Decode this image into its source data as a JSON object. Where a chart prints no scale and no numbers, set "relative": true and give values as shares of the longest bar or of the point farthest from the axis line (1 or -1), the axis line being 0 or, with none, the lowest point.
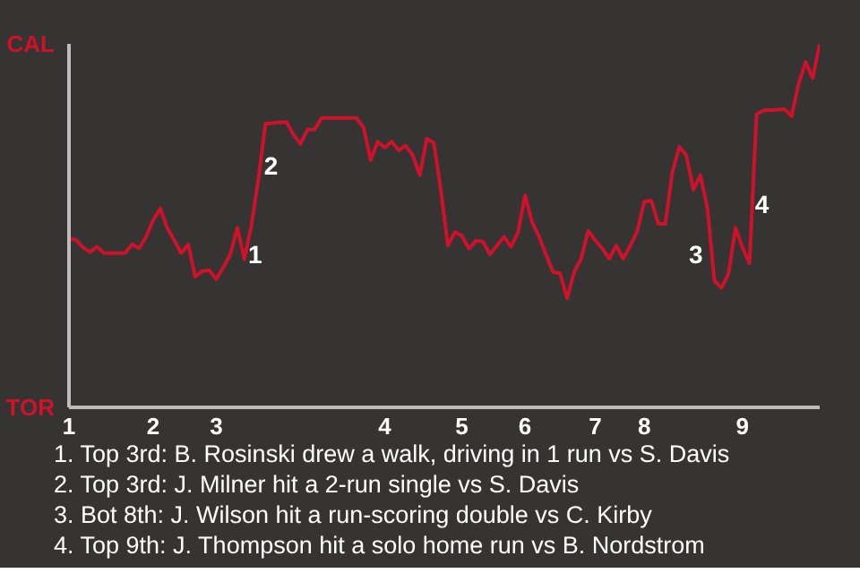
{
  "chart_data": {
    "type": "line",
    "color": "#d0112b",
    "relative": true,
    "categories": [
      "1",
      null,
      null,
      null,
      null,
      null,
      null,
      null,
      null,
      null,
      null,
      null,
      "2",
      null,
      null,
      null,
      null,
      null,
      null,
      null,
      null,
      "3",
      null,
      null,
      null,
      null,
      null,
      null,
      null,
      null,
      null,
      null,
      null,
      null,
      null,
      null,
      null,
      null,
      null,
      null,
      null,
      null,
      null,
      null,
      null,
      "4",
      null,
      null,
      null,
      null,
      null,
      null,
      null,
      null,
      null,
      null,
      "5",
      null,
      null,
      null,
      null,
      null,
      null,
      null,
      null,
      "6",
      null,
      null,
      null,
      null,
      null,
      null,
      null,
      null,
      null,
      "7",
      null,
      null,
      null,
      null,
      null,
      null,
      "8",
      null,
      null,
      null,
      null,
      null,
      null,
      null,
      null,
      null,
      null,
      null,
      null,
      null,
      "9",
      null,
      null,
      null,
      null,
      null,
      null,
      null,
      null,
      null,
      null,
      null
    ],
    "values": [
      0.464,
      0.461,
      0.44,
      0.427,
      0.442,
      0.424,
      0.424,
      0.424,
      0.424,
      0.448,
      0.437,
      0.469,
      0.515,
      0.547,
      0.494,
      0.46,
      0.424,
      0.448,
      0.359,
      0.375,
      0.377,
      0.353,
      0.385,
      0.421,
      0.494,
      0.408,
      0.501,
      0.628,
      0.78,
      0.782,
      0.784,
      0.785,
      0.75,
      0.725,
      0.764,
      0.765,
      0.796,
      0.796,
      0.796,
      0.796,
      0.796,
      0.796,
      0.769,
      0.68,
      0.731,
      0.715,
      0.731,
      0.707,
      0.72,
      0.693,
      0.639,
      0.739,
      0.728,
      0.599,
      0.445,
      0.482,
      0.472,
      0.437,
      0.458,
      0.456,
      0.421,
      0.445,
      0.469,
      0.442,
      0.481,
      0.583,
      0.51,
      0.469,
      0.42,
      0.372,
      0.369,
      0.3,
      0.372,
      0.409,
      0.485,
      0.46,
      0.437,
      0.409,
      0.445,
      0.409,
      0.445,
      0.485,
      0.566,
      0.569,
      0.505,
      0.505,
      0.647,
      0.717,
      0.693,
      0.599,
      0.639,
      0.547,
      0.348,
      0.329,
      0.367,
      0.494,
      0.44,
      0.397,
      0.806,
      0.817,
      0.818,
      0.819,
      0.82,
      0.801,
      0.89,
      0.95,
      0.906,
      1
    ],
    "annotations": [
      "CAL",
      "TOR",
      "1",
      "2",
      "3",
      "4",
      "1. Top 3rd: B. Rosinski drew a walk, driving in 1 run vs S. Davis",
      "2. Top 3rd: J. Milner hit a 2-run single vs S. Davis",
      "3. Bot 8th: J. Wilson hit a run-scoring double vs C. Kirby",
      "4. Top 9th: J. Thompson hit a solo home run vs B. Nordstrom"
    ]
  }
}
